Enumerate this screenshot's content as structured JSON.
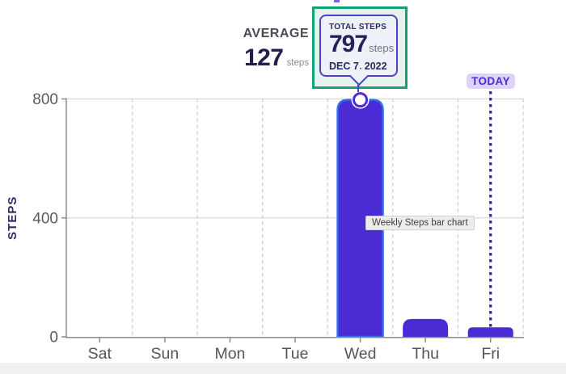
{
  "chart_data": {
    "type": "bar",
    "categories": [
      "Sat",
      "Sun",
      "Mon",
      "Tue",
      "Wed",
      "Thu",
      "Fri"
    ],
    "values": [
      0,
      0,
      0,
      0,
      797,
      60,
      32
    ],
    "ylabel": "STEPS",
    "yticks": [
      0,
      400,
      800
    ],
    "ylim": [
      0,
      800
    ],
    "highlighted_category": "Wed",
    "today_category": "Fri",
    "grid": "horizontal solid at y ticks, vertical dashed at category boundaries",
    "legend": false
  },
  "average": {
    "label": "AVERAGE",
    "value": "127",
    "unit": "steps"
  },
  "tooltip": {
    "title": "TOTAL STEPS",
    "value": "797",
    "unit": "steps",
    "date": "DEC 7, 2022"
  },
  "today_badge": {
    "label": "TODAY"
  },
  "chart_aria_tooltip": "Weekly Steps bar chart",
  "colors": {
    "bar": "#4a2bd4",
    "bar_border": "#2e6ee6",
    "accent_green": "#12a07a",
    "today_bg": "#ddd2f8",
    "today_text": "#4e2ad6",
    "dotted_line": "#2c21c4",
    "navy_text": "#252259",
    "axis": "#8b8b8b",
    "grid": "#d9d9d9",
    "label_gray": "#55565a"
  }
}
